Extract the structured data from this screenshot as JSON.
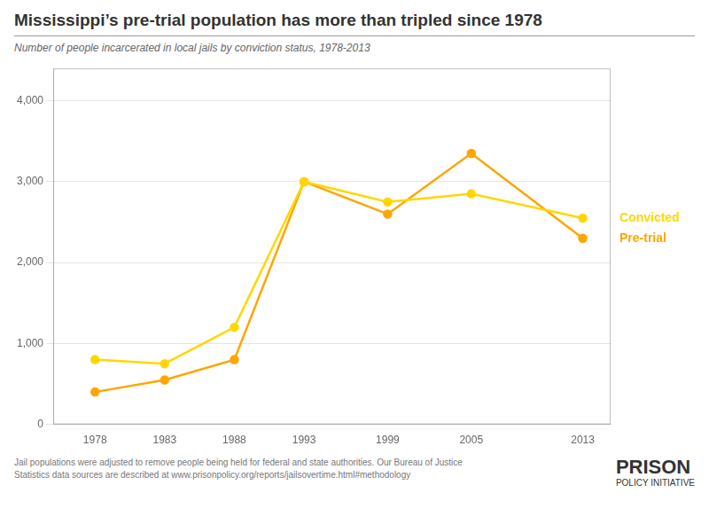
{
  "chart_data": {
    "type": "line",
    "title": "Mississippi’s pre-trial population has more than tripled since 1978",
    "subtitle": "Number of people incarcerated in local jails by conviction status, 1978-2013",
    "x": [
      1978,
      1983,
      1988,
      1993,
      1999,
      2005,
      2013
    ],
    "series": [
      {
        "name": "Convicted",
        "color": "#FFD700",
        "marker": "circle",
        "values": [
          800,
          750,
          1200,
          3000,
          2750,
          2850,
          2550
        ]
      },
      {
        "name": "Pre-trial",
        "color": "#FFA500",
        "marker": "circle",
        "values": [
          400,
          550,
          800,
          3000,
          2600,
          3350,
          2300
        ]
      }
    ],
    "xlim": [
      1975,
      2015
    ],
    "xticks": [
      1978,
      1983,
      1988,
      1993,
      1999,
      2005,
      2013
    ],
    "ylim": [
      0,
      4400
    ],
    "yticks": [
      0,
      {
        "value": 1000,
        "label": "1,000"
      },
      {
        "value": 2000,
        "label": "2,000"
      },
      {
        "value": 3000,
        "label": "3,000"
      },
      {
        "value": 4000,
        "label": "4,000"
      }
    ],
    "grid": true,
    "annotations": [
      "Jail populations were adjusted to remove people being held for federal and state authorities. Our Bureau of Justice",
      "Statistics data sources are described at www.prisonpolicy.org/reports/jailsovertime.html#methodology",
      "PRISON",
      "POLICY INITIATIVE"
    ]
  }
}
